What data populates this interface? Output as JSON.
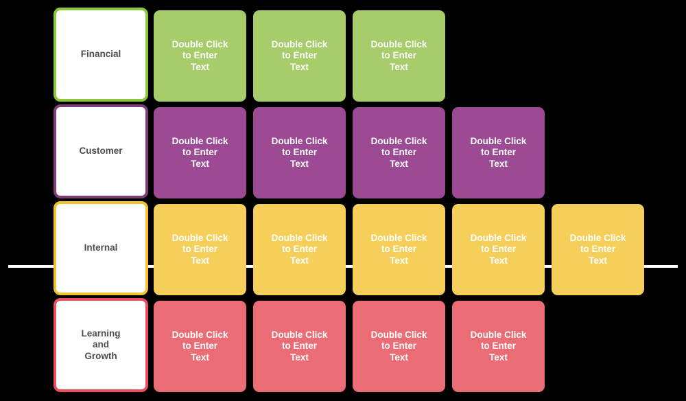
{
  "canvas": {
    "background": "#000000",
    "divider_color": "#FFFFFF"
  },
  "card_placeholder": "Double Click\nto Enter\nText",
  "text_colors": {
    "label_text": "#4D4D4D",
    "card_text": "#FFFFFF"
  },
  "rows": [
    {
      "name": "financial",
      "label": "Financial",
      "card_fill": "#A7CC6A",
      "accent": "#8DC63F",
      "card_count": 3
    },
    {
      "name": "customer",
      "label": "Customer",
      "card_fill": "#9C4A94",
      "accent": "#7D3E74",
      "card_count": 4
    },
    {
      "name": "internal",
      "label": "Internal",
      "card_fill": "#F6CF5B",
      "accent": "#F2C230",
      "card_count": 5
    },
    {
      "name": "learning-and-growth",
      "label": "Learning\nand\nGrowth",
      "card_fill": "#EA6D76",
      "accent": "#E8505E",
      "card_count": 4
    }
  ]
}
